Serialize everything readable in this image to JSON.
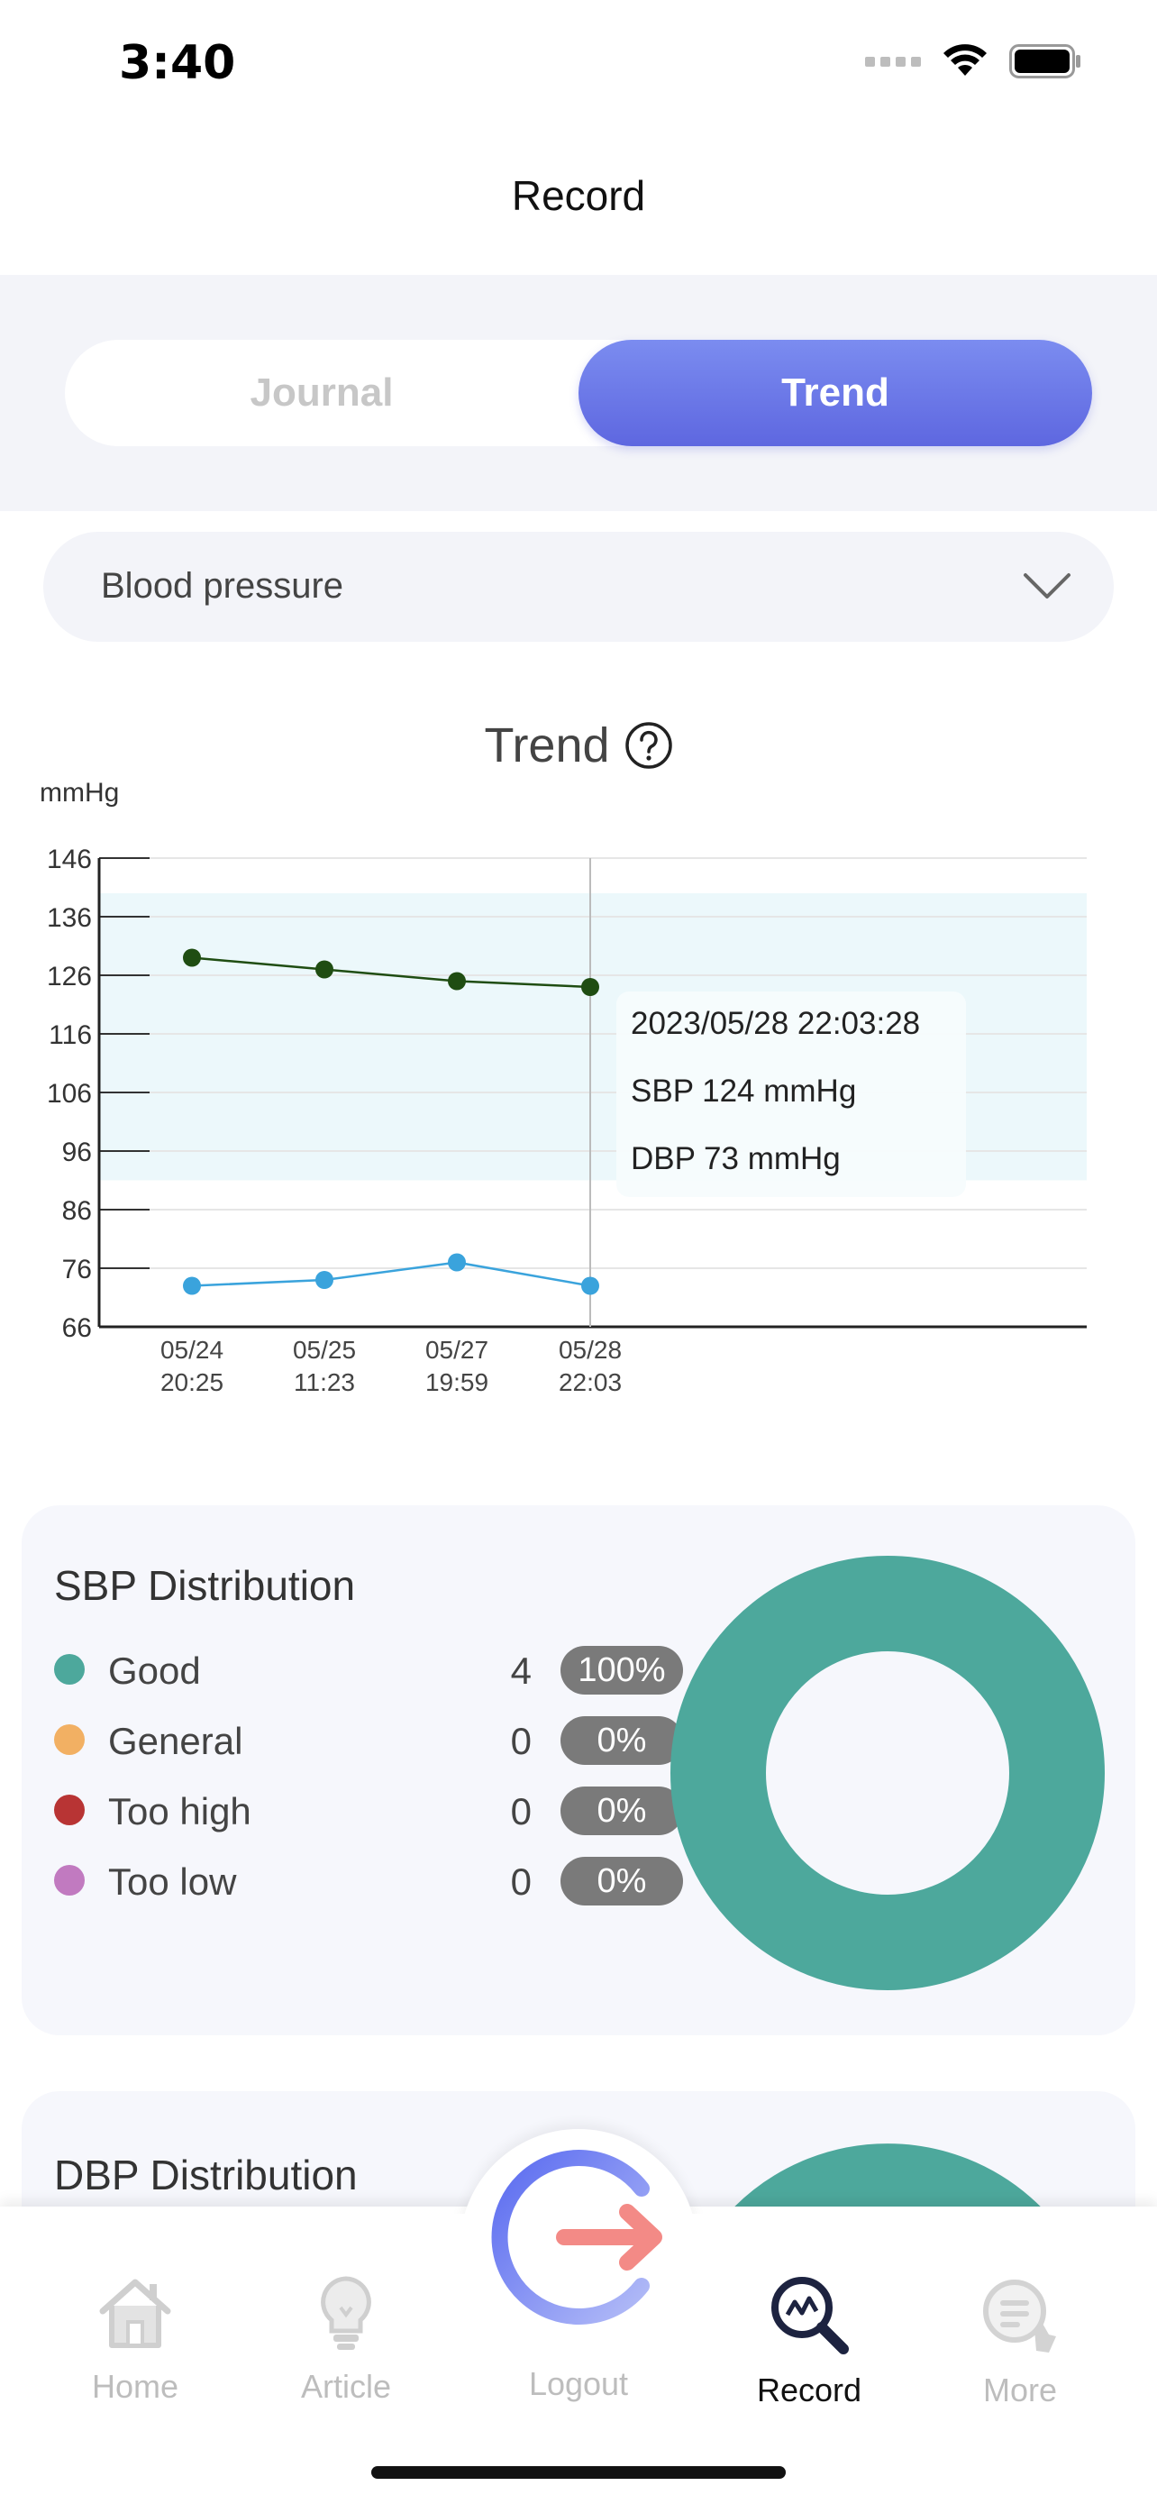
{
  "status_bar": {
    "time": "3:40"
  },
  "nav": {
    "title": "Record"
  },
  "segment": {
    "journal_label": "Journal",
    "trend_label": "Trend",
    "selected": "Trend"
  },
  "dropdown": {
    "value": "Blood pressure"
  },
  "chart_title": "Trend",
  "chart_data": {
    "type": "line",
    "ylabel": "mmHg",
    "y_ticks": [
      66,
      76,
      86,
      96,
      106,
      116,
      126,
      136,
      146
    ],
    "ylim": [
      66,
      146
    ],
    "normal_band": [
      91,
      140
    ],
    "categories": [
      "05/24\n20:25",
      "05/25\n11:23",
      "05/27\n19:59",
      "05/28\n22:03"
    ],
    "series": [
      {
        "values": [
          129,
          127,
          125,
          124
        ],
        "color": "#1f4d12"
      },
      {
        "values": [
          73,
          74,
          77,
          73
        ],
        "color": "#3aa3dc"
      }
    ],
    "tooltip": {
      "index": 3,
      "datetime": "2023/05/28 22:03:28",
      "sbp_text": "SBP 124 mmHg",
      "dbp_text": "DBP 73 mmHg"
    },
    "grid": true
  },
  "sbp_distribution": {
    "title": "SBP Distribution",
    "items": [
      {
        "label": "Good",
        "count": "4",
        "percent": "100%",
        "color": "#4da89c"
      },
      {
        "label": "General",
        "count": "0",
        "percent": "0%",
        "color": "#f2b063"
      },
      {
        "label": "Too high",
        "count": "0",
        "percent": "0%",
        "color": "#b83434"
      },
      {
        "label": "Too low",
        "count": "0",
        "percent": "0%",
        "color": "#c17ac0"
      }
    ]
  },
  "dbp_distribution": {
    "title": "DBP Distribution"
  },
  "tabbar": {
    "items": [
      {
        "label": "Home",
        "icon": "home-icon"
      },
      {
        "label": "Article",
        "icon": "lightbulb-icon"
      },
      {
        "label": "Logout",
        "icon": "logout-icon"
      },
      {
        "label": "Record",
        "icon": "record-icon",
        "active": true
      },
      {
        "label": "More",
        "icon": "more-icon"
      }
    ]
  }
}
